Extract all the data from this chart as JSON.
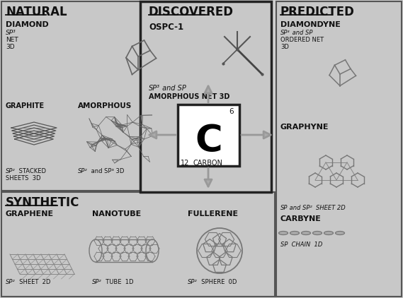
{
  "bg_color": "#d0d0d0",
  "panel_color": "#cccccc",
  "panel_color2": "#c8c8c8",
  "white": "#ffffff",
  "dark": "#111111",
  "mid": "#888888",
  "edge_dark": "#333333",
  "natural_title": "NATURAL",
  "discovered_title": "DISCOVERED",
  "predicted_title": "PREDICTED",
  "synthetic_title": "SYNTHETIC",
  "carbon_symbol": "C",
  "carbon_number": "6",
  "carbon_mass": "12",
  "carbon_name": "CARBON",
  "ospc_label": "OSPC-1",
  "diamond_label": "DIAMOND",
  "graphite_label": "GRAPHITE",
  "amorphous_label": "AMORPHOUS",
  "diamondyne_label": "DIAMONDYNE",
  "graphyne_label": "GRAPHYNE",
  "carbyne_label": "CARBYNE",
  "graphene_label": "GRAPHENE",
  "nanotube_label": "NANOTUBE",
  "fullerene_label": "FULLERENE",
  "fig_w": 5.69,
  "fig_h": 4.22,
  "dpi": 100
}
